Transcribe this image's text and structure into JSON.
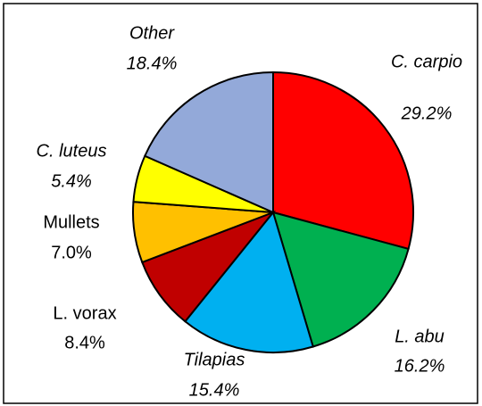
{
  "chart_data": {
    "type": "pie",
    "categories": [
      "C. carpio",
      "L. abu",
      "Tilapias",
      "L. vorax",
      "Mullets",
      "C. luteus",
      "Other"
    ],
    "values": [
      29.2,
      16.2,
      15.4,
      8.4,
      7.0,
      5.4,
      18.4
    ],
    "value_labels": [
      "29.2%",
      "16.2%",
      "15.4%",
      "8.4%",
      "7.0%",
      "5.4%",
      "18.4%"
    ],
    "colors": [
      "#ff0000",
      "#00b050",
      "#00b0f0",
      "#c00000",
      "#ffc000",
      "#ffff00",
      "#93a9d9"
    ]
  }
}
